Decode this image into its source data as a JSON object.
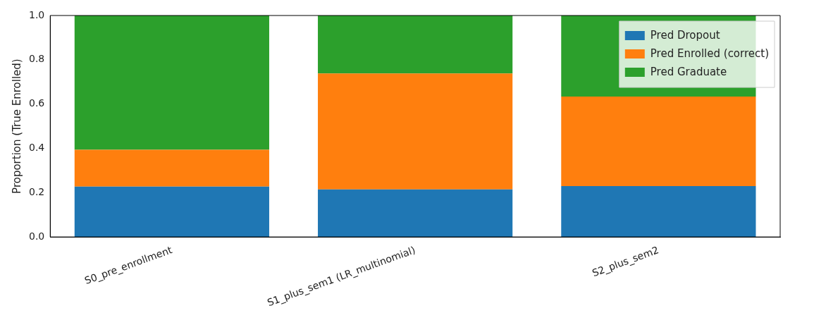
{
  "chart_data": {
    "type": "bar",
    "stacked": true,
    "ylabel": "Proportion (True Enrolled)",
    "categories": [
      "S0_pre_enrollment",
      "S1_plus_sem1 (LR_multinomial)",
      "S2_plus_sem2"
    ],
    "series": [
      {
        "name": "Pred Dropout",
        "color": "#1f77b4",
        "values": [
          0.227,
          0.215,
          0.23
        ]
      },
      {
        "name": "Pred Enrolled (correct)",
        "color": "#ff7f0e",
        "values": [
          0.167,
          0.523,
          0.404
        ]
      },
      {
        "name": "Pred Graduate",
        "color": "#2ca02c",
        "values": [
          0.606,
          0.262,
          0.366
        ]
      }
    ],
    "ylim": [
      0,
      1
    ],
    "yticks": [
      {
        "value": 0,
        "label": "0.0"
      },
      {
        "value": 0.2,
        "label": "0.2"
      },
      {
        "value": 0.4,
        "label": "0.4"
      },
      {
        "value": 0.6,
        "label": "0.6"
      },
      {
        "value": 0.8,
        "label": "0.8"
      },
      {
        "value": 1,
        "label": "1.0"
      }
    ],
    "grid": false,
    "legend": "top right"
  }
}
